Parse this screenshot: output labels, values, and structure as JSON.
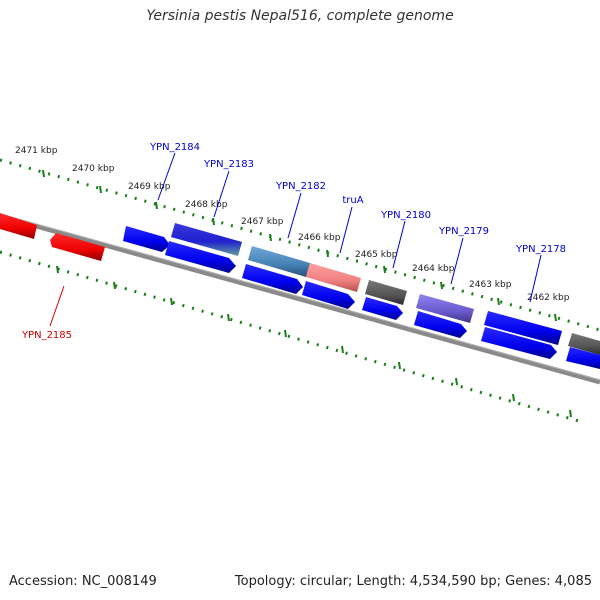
{
  "title": "Yersinia pestis Nepal516, complete genome",
  "footer": {
    "accession": "Accession: NC_008149",
    "summary": "Topology: circular; Length: 4,534,590 bp; Genes: 4,085"
  },
  "colors": {
    "forward": "#0000ee",
    "reverse": "#ee0000",
    "rna_gray": "#555555",
    "purple": "#6a5acd",
    "teal": "#4682b4",
    "pink": "#f08080",
    "backbone": "#808080",
    "tick": "#1a7f1a",
    "label_blue": "#0000cc",
    "label_red": "#cc0000"
  },
  "scale_labels": [
    "2471 kbp",
    "2470 kbp",
    "2469 kbp",
    "2468 kbp",
    "2467 kbp",
    "2466 kbp",
    "2465 kbp",
    "2464 kbp",
    "2463 kbp",
    "2462 kbp"
  ],
  "gene_labels": [
    {
      "text": "YPN_2184",
      "color": "label_blue"
    },
    {
      "text": "YPN_2183",
      "color": "label_blue"
    },
    {
      "text": "YPN_2182",
      "color": "label_blue"
    },
    {
      "text": "truA",
      "color": "label_blue"
    },
    {
      "text": "YPN_2180",
      "color": "label_blue"
    },
    {
      "text": "YPN_2179",
      "color": "label_blue"
    },
    {
      "text": "YPN_2178",
      "color": "label_blue"
    },
    {
      "text": "YPN_2185",
      "color": "label_red"
    }
  ]
}
